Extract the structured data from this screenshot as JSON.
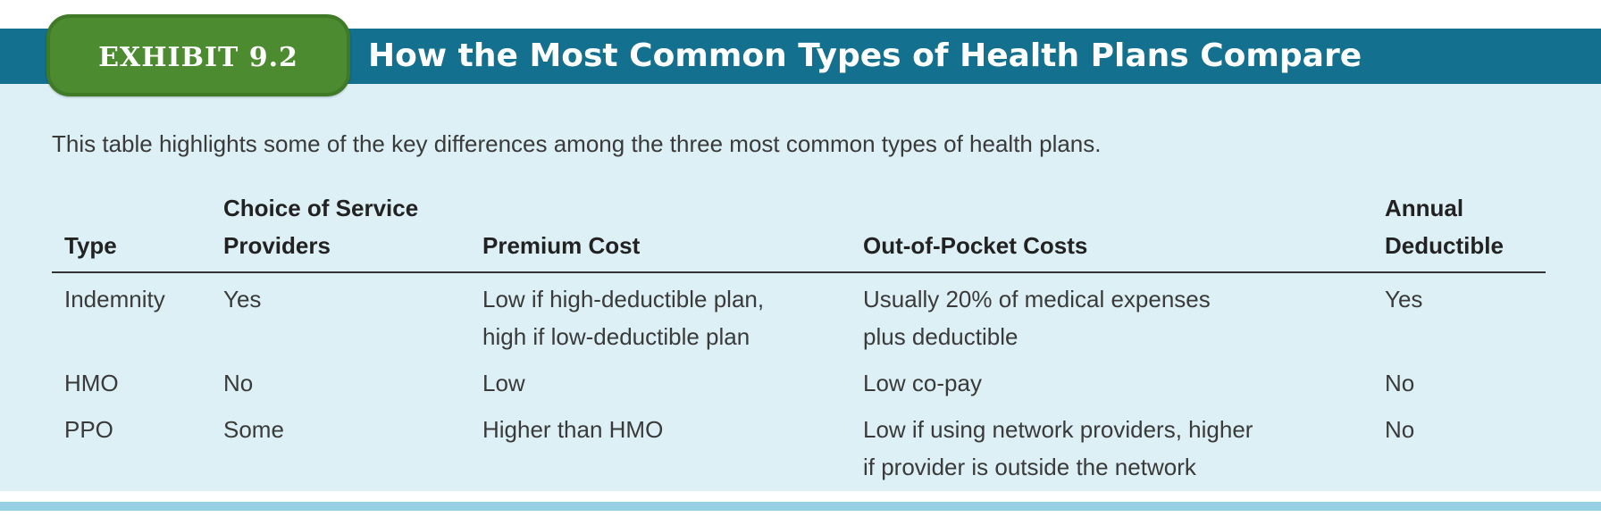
{
  "exhibit": {
    "label": "EXHIBIT 9.2",
    "title": "How the Most Common Types of Health Plans Compare",
    "intro": "This table highlights some of the key differences among the three most common types of health plans."
  },
  "table": {
    "headers": {
      "type": "Type",
      "choice_line1": "Choice of Service",
      "choice_line2": "Providers",
      "premium": "Premium Cost",
      "oop": "Out-of-Pocket Costs",
      "deductible_line1": "Annual",
      "deductible_line2": "Deductible"
    },
    "rows": [
      {
        "type": "Indemnity",
        "choice": "Yes",
        "premium_line1": "Low if high-deductible plan,",
        "premium_line2": "high if low-deductible plan",
        "oop_line1": "Usually 20% of medical expenses",
        "oop_line2": "plus deductible",
        "deductible": "Yes"
      },
      {
        "type": "HMO",
        "choice": "No",
        "premium_line1": "Low",
        "premium_line2": "",
        "oop_line1": "Low co-pay",
        "oop_line2": "",
        "deductible": "No"
      },
      {
        "type": "PPO",
        "choice": "Some",
        "premium_line1": "Higher than HMO",
        "premium_line2": "",
        "oop_line1": "Low if using network providers, higher",
        "oop_line2": "if provider is outside the network",
        "deductible": "No"
      }
    ]
  },
  "colors": {
    "header_bar": "#13708f",
    "badge": "#4c8b2f",
    "panel": "#dcf0f6",
    "bottom_rule": "#97d0e4"
  }
}
